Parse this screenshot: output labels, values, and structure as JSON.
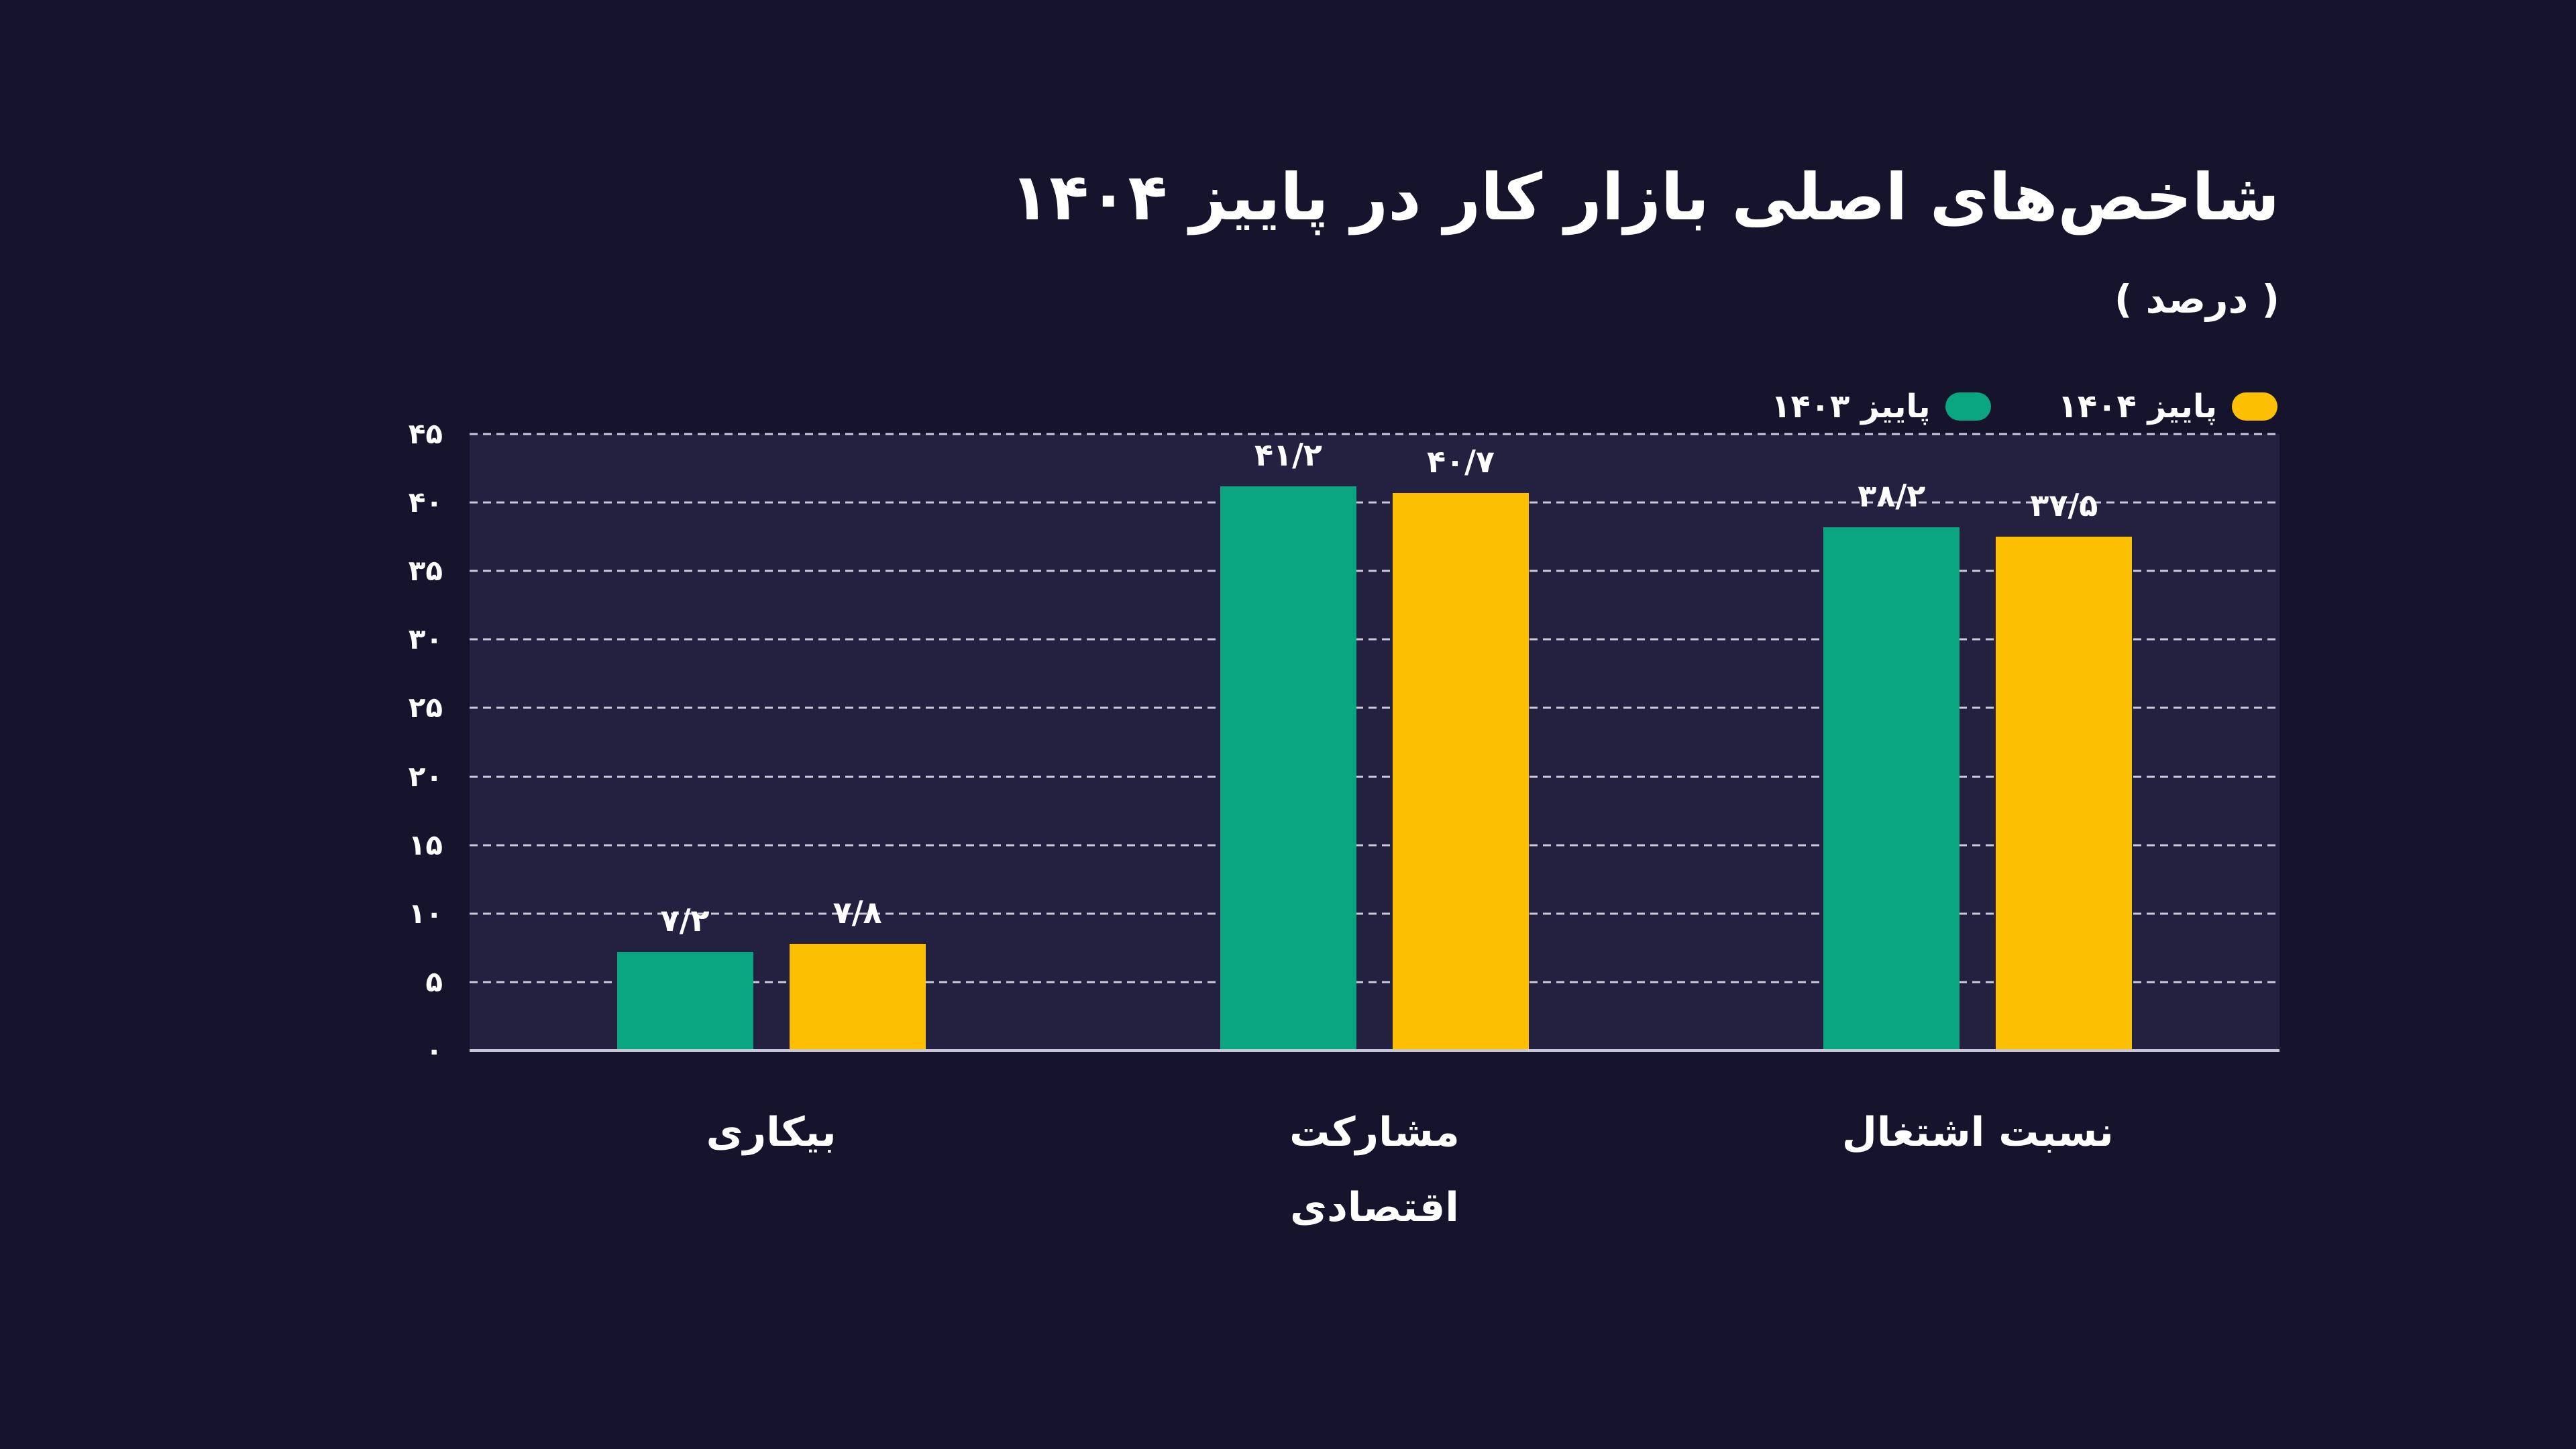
{
  "page": {
    "title": "شاخص‌های اصلی بازار کار در پاییز ۱۴۰۴",
    "subtitle": "( درصد )"
  },
  "colors": {
    "page_background": "#16132c",
    "plot_background": "#232040",
    "grid_line": "rgba(233,231,245,0.85)",
    "axis_line": "#c9c7d6",
    "text": "#ffffff",
    "series_autumn_1403": "#09a681",
    "series_autumn_1404": "#fcbf02"
  },
  "legend": {
    "position": "top-right",
    "items": [
      {
        "label": "پاییز ۱۴۰۳",
        "color": "#09a681"
      },
      {
        "label": "پاییز ۱۴۰۴",
        "color": "#fcbf02"
      }
    ]
  },
  "chart_data": {
    "type": "bar",
    "title": "شاخص‌های اصلی بازار کار در پاییز ۱۴۰۴",
    "unit_label": "( درصد )",
    "categories": [
      "بیکاری",
      "مشارکت اقتصادی",
      "نسبت اشتغال"
    ],
    "category_display_labels": [
      "بیکاری",
      "مشارکت\nاقتصادی",
      "نسبت اشتغال"
    ],
    "series": [
      {
        "name": "پاییز ۱۴۰۳",
        "color": "#09a681",
        "values": [
          7.2,
          41.2,
          38.2
        ],
        "value_labels": [
          "۷/۲",
          "۴۱/۲",
          "۳۸/۲"
        ]
      },
      {
        "name": "پاییز ۱۴۰۴",
        "color": "#fcbf02",
        "values": [
          7.8,
          40.7,
          37.5
        ],
        "value_labels": [
          "۷/۸",
          "۴۰/۷",
          "۳۷/۵"
        ]
      }
    ],
    "ylim": [
      0,
      45
    ],
    "y_ticks": [
      {
        "value": 0,
        "label": "۰"
      },
      {
        "value": 5,
        "label": "۵"
      },
      {
        "value": 10,
        "label": "۱۰"
      },
      {
        "value": 15,
        "label": "۱۵"
      },
      {
        "value": 20,
        "label": "۲۰"
      },
      {
        "value": 25,
        "label": "۲۵"
      },
      {
        "value": 30,
        "label": "۳۰"
      },
      {
        "value": 35,
        "label": "۳۵"
      },
      {
        "value": 40,
        "label": "۴۰"
      },
      {
        "value": 45,
        "label": "۴۵"
      }
    ],
    "grid": "horizontal-dashed",
    "legend_position": "top-right",
    "bar_value_labels_shown": true
  }
}
